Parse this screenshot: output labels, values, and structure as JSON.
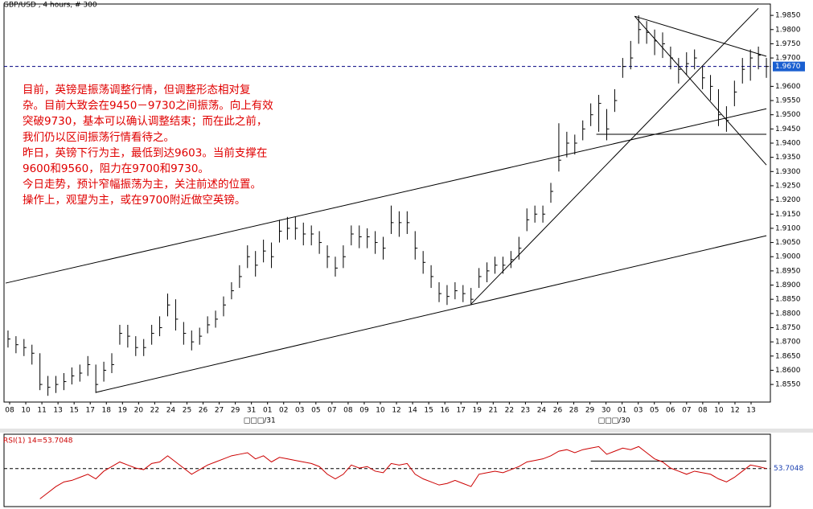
{
  "chart_data": [
    {
      "type": "ohlc",
      "title": "GBP/USD , 4 hours, # 300",
      "color": "#000000",
      "categories": [
        "08",
        "10",
        "11",
        "13",
        "15",
        "17",
        "18",
        "19",
        "20",
        "22",
        "24",
        "25",
        "26",
        "27",
        "29",
        "31",
        "01",
        "02",
        "03",
        "05",
        "07",
        "08",
        "09",
        "10",
        "12",
        "14",
        "15",
        "16",
        "17",
        "19",
        "21",
        "22",
        "23",
        "24",
        "26",
        "28",
        "29",
        "30",
        "01",
        "03",
        "05",
        "06",
        "07",
        "08",
        "10",
        "12",
        "13"
      ],
      "month_labels": [
        null,
        null,
        null,
        null,
        null,
        null,
        null,
        null,
        null,
        null,
        null,
        null,
        null,
        null,
        null,
        null,
        "□□□/31",
        null,
        null,
        null,
        null,
        null,
        null,
        null,
        null,
        null,
        null,
        null,
        null,
        null,
        null,
        null,
        null,
        null,
        null,
        null,
        null,
        null,
        "□□□/30",
        null,
        null,
        null,
        null,
        null,
        null,
        null,
        null
      ],
      "high": [
        1.874,
        1.872,
        1.871,
        1.869,
        1.866,
        1.858,
        1.858,
        1.859,
        1.861,
        1.862,
        1.865,
        1.862,
        1.863,
        1.866,
        1.876,
        1.876,
        1.872,
        1.871,
        1.876,
        1.879,
        1.887,
        1.885,
        1.877,
        1.874,
        1.875,
        1.879,
        1.881,
        1.886,
        1.891,
        1.897,
        1.904,
        1.902,
        1.906,
        1.905,
        1.913,
        1.914,
        1.914,
        1.912,
        1.911,
        1.909,
        1.904,
        1.9,
        1.904,
        1.911,
        1.911,
        1.91,
        1.909,
        1.907,
        1.918,
        1.916,
        1.916,
        1.909,
        1.902,
        1.897,
        1.891,
        1.89,
        1.891,
        1.89,
        1.889,
        1.896,
        1.898,
        1.9,
        1.9,
        1.902,
        1.907,
        1.917,
        1.918,
        1.918,
        1.926,
        1.947,
        1.944,
        1.943,
        1.948,
        1.954,
        1.957,
        1.952,
        1.959,
        1.97,
        1.976,
        1.985,
        1.983,
        1.98,
        1.979,
        1.974,
        1.97,
        1.972,
        1.973,
        1.967,
        1.964,
        1.959,
        1.953,
        1.962,
        1.97,
        1.973,
        1.974,
        1.97
      ],
      "low": [
        1.868,
        1.866,
        1.865,
        1.862,
        1.853,
        1.851,
        1.852,
        1.853,
        1.855,
        1.856,
        1.858,
        1.852,
        1.856,
        1.859,
        1.869,
        1.868,
        1.865,
        1.865,
        1.869,
        1.872,
        1.879,
        1.874,
        1.869,
        1.867,
        1.869,
        1.873,
        1.875,
        1.879,
        1.885,
        1.889,
        1.896,
        1.893,
        1.898,
        1.896,
        1.905,
        1.906,
        1.906,
        1.904,
        1.904,
        1.901,
        1.896,
        1.893,
        1.896,
        1.904,
        1.903,
        1.903,
        1.901,
        1.899,
        1.908,
        1.907,
        1.908,
        1.899,
        1.894,
        1.889,
        1.884,
        1.883,
        1.885,
        1.884,
        1.883,
        1.889,
        1.891,
        1.894,
        1.894,
        1.896,
        1.899,
        1.909,
        1.912,
        1.912,
        1.919,
        1.93,
        1.935,
        1.936,
        1.941,
        1.946,
        1.944,
        1.941,
        1.951,
        1.963,
        1.966,
        1.975,
        1.975,
        1.971,
        1.97,
        1.966,
        1.961,
        1.964,
        1.966,
        1.959,
        1.955,
        1.946,
        1.944,
        1.953,
        1.961,
        1.962,
        1.966,
        1.963
      ],
      "close": [
        1.871,
        1.869,
        1.868,
        1.866,
        1.855,
        1.854,
        1.855,
        1.856,
        1.858,
        1.859,
        1.862,
        1.855,
        1.86,
        1.862,
        1.873,
        1.872,
        1.868,
        1.868,
        1.873,
        1.875,
        1.883,
        1.878,
        1.873,
        1.87,
        1.872,
        1.876,
        1.878,
        1.883,
        1.888,
        1.893,
        1.9,
        1.897,
        1.902,
        1.9,
        1.909,
        1.91,
        1.91,
        1.908,
        1.908,
        1.905,
        1.9,
        1.896,
        1.9,
        1.908,
        1.907,
        1.907,
        1.905,
        1.903,
        1.912,
        1.912,
        1.912,
        1.903,
        1.898,
        1.893,
        1.887,
        1.886,
        1.888,
        1.887,
        1.885,
        1.893,
        1.895,
        1.897,
        1.897,
        1.899,
        1.903,
        1.913,
        1.915,
        1.915,
        1.923,
        1.934,
        1.94,
        1.94,
        1.945,
        1.95,
        1.954,
        1.945,
        1.955,
        1.967,
        1.97,
        1.98,
        1.979,
        1.976,
        1.975,
        1.97,
        1.966,
        1.968,
        1.97,
        1.963,
        1.96,
        1.95,
        1.948,
        1.958,
        1.966,
        1.97,
        1.971,
        1.967
      ],
      "ylim": [
        1.8488,
        1.989
      ],
      "yticks": [
        {
          "value": 1.855,
          "label": "1.8550"
        },
        {
          "value": 1.86,
          "label": "1.8600"
        },
        {
          "value": 1.865,
          "label": "1.8650"
        },
        {
          "value": 1.87,
          "label": "1.8700"
        },
        {
          "value": 1.875,
          "label": "1.8750"
        },
        {
          "value": 1.88,
          "label": "1.8800"
        },
        {
          "value": 1.885,
          "label": "1.8850"
        },
        {
          "value": 1.89,
          "label": "1.8900"
        },
        {
          "value": 1.895,
          "label": "1.8950"
        },
        {
          "value": 1.9,
          "label": "1.9000"
        },
        {
          "value": 1.905,
          "label": "1.9050"
        },
        {
          "value": 1.91,
          "label": "1.9100"
        },
        {
          "value": 1.915,
          "label": "1.9150"
        },
        {
          "value": 1.92,
          "label": "1.9200"
        },
        {
          "value": 1.925,
          "label": "1.9250"
        },
        {
          "value": 1.93,
          "label": "1.9300"
        },
        {
          "value": 1.935,
          "label": "1.9350"
        },
        {
          "value": 1.94,
          "label": "1.9400"
        },
        {
          "value": 1.945,
          "label": "1.9450"
        },
        {
          "value": 1.95,
          "label": "1.9500"
        },
        {
          "value": 1.955,
          "label": "1.9550"
        },
        {
          "value": 1.96,
          "label": "1.9600"
        },
        {
          "value": 1.97,
          "label": "1.9700"
        },
        {
          "value": 1.975,
          "label": "1.9750"
        },
        {
          "value": 1.98,
          "label": "1.9800"
        },
        {
          "value": 1.985,
          "label": "1.9850"
        }
      ],
      "last": {
        "value": 1.967,
        "label": "1.9670"
      },
      "trendlines": [
        [
          [
            -0.3,
            1.8907
          ],
          [
            95,
            1.9521
          ]
        ],
        [
          [
            11,
            1.8522
          ],
          [
            95,
            1.9074
          ]
        ],
        [
          [
            58,
            1.8833
          ],
          [
            94,
            1.9875
          ]
        ],
        [
          [
            78.5,
            1.9847
          ],
          [
            95,
            1.9323
          ]
        ],
        [
          [
            78.5,
            1.9847
          ],
          [
            95,
            1.9706
          ]
        ],
        [
          [
            73.7,
            1.9431
          ],
          [
            95,
            1.9431
          ]
        ]
      ],
      "annotation": [
        "目前，英镑是振荡调整行情，但调整形态相对复",
        "杂。目前大致会在9450－9730之间振荡。向上有效",
        "突破9730，基本可以确认调整结束；而在此之前，",
        "我们仍以区间振荡行情看待之。",
        "昨日，英镑下行为主，最低到达9603。当前支撑在",
        "9600和9560，阻力在9700和9730。",
        "今日走势，预计窄幅振荡为主，关注前述的位置。",
        "操作上，观望为主，或在9700附近做空英镑。"
      ]
    },
    {
      "type": "line",
      "title": "RSI(1) 14=53.7048",
      "color": "#cc0000",
      "values": [
        null,
        null,
        null,
        null,
        34,
        38,
        42,
        45,
        46,
        48,
        50,
        47,
        52,
        55,
        58,
        56,
        54,
        53,
        57,
        58,
        62,
        58,
        54,
        50,
        53,
        56,
        58,
        60,
        62,
        63,
        64,
        60,
        62,
        58,
        61,
        60,
        59,
        58,
        57,
        55,
        50,
        47,
        50,
        56,
        54,
        55,
        52,
        51,
        57,
        56,
        57,
        50,
        47,
        45,
        43,
        44,
        46,
        44,
        42,
        50,
        51,
        52,
        51,
        53,
        55,
        58,
        59,
        60,
        62,
        65,
        66,
        64,
        66,
        67,
        68,
        63,
        65,
        67,
        66,
        68,
        64,
        60,
        58,
        54,
        52,
        50,
        52,
        51,
        50,
        47,
        45,
        48,
        52,
        56,
        55,
        53.7048
      ],
      "ylim": [
        30,
        75
      ],
      "current": {
        "value": 53.7048,
        "label": "53.7048"
      },
      "level": [
        [
          73,
          58.6
        ],
        [
          95,
          58.6
        ]
      ]
    }
  ]
}
